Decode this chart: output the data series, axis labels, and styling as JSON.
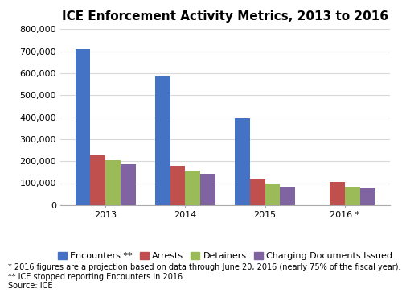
{
  "title": "ICE Enforcement Activity Metrics, 2013 to 2016",
  "categories": [
    "2013",
    "2014",
    "2015",
    "2016 *"
  ],
  "series": {
    "Encounters **": [
      710000,
      585000,
      395000,
      0
    ],
    "Arrests": [
      228000,
      180000,
      120000,
      107000
    ],
    "Detainers": [
      205000,
      157000,
      99000,
      82000
    ],
    "Charging Documents Issued": [
      187000,
      142000,
      84000,
      79000
    ]
  },
  "colors": {
    "Encounters **": "#4472C4",
    "Arrests": "#C0504D",
    "Detainers": "#9BBB59",
    "Charging Documents Issued": "#8064A2"
  },
  "ylim": [
    0,
    800000
  ],
  "yticks": [
    0,
    100000,
    200000,
    300000,
    400000,
    500000,
    600000,
    700000,
    800000
  ],
  "ytick_labels": [
    "0",
    "100,000",
    "200,000",
    "300,000",
    "400,000",
    "500,000",
    "600,000",
    "700,000",
    "800,000"
  ],
  "footnotes": [
    "* 2016 figures are a projection based on data through June 20, 2016 (nearly 75% of the fiscal year).",
    "** ICE stopped reporting Encounters in 2016.",
    "Source: ICE"
  ],
  "background_color": "#FFFFFF",
  "grid_color": "#D9D9D9",
  "title_fontsize": 11,
  "footnote_fontsize": 7,
  "legend_fontsize": 8,
  "tick_fontsize": 8
}
